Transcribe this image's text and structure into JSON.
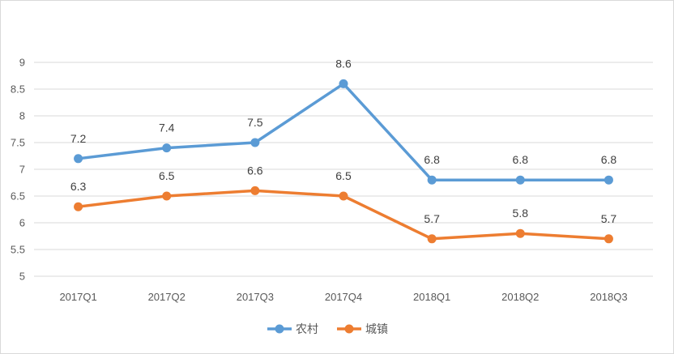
{
  "chart_data": {
    "type": "line",
    "title": "",
    "xlabel": "",
    "ylabel": "",
    "categories": [
      "2017Q1",
      "2017Q2",
      "2017Q3",
      "2017Q4",
      "2018Q1",
      "2018Q2",
      "2018Q3"
    ],
    "ylim": [
      5,
      9
    ],
    "yticks": [
      "5",
      "5.5",
      "6",
      "6.5",
      "7",
      "7.5",
      "8",
      "8.5",
      "9"
    ],
    "grid": true,
    "legend_position": "bottom",
    "series": [
      {
        "name": "农村",
        "color": "#5b9bd5",
        "values": [
          7.2,
          7.4,
          7.5,
          8.6,
          6.8,
          6.8,
          6.8
        ],
        "labels": [
          "7.2",
          "7.4",
          "7.5",
          "8.6",
          "6.8",
          "6.8",
          "6.8"
        ]
      },
      {
        "name": "城镇",
        "color": "#ed7d31",
        "values": [
          6.3,
          6.5,
          6.6,
          6.5,
          5.7,
          5.8,
          5.7
        ],
        "labels": [
          "6.3",
          "6.5",
          "6.6",
          "6.5",
          "5.7",
          "5.8",
          "5.7"
        ]
      }
    ]
  }
}
